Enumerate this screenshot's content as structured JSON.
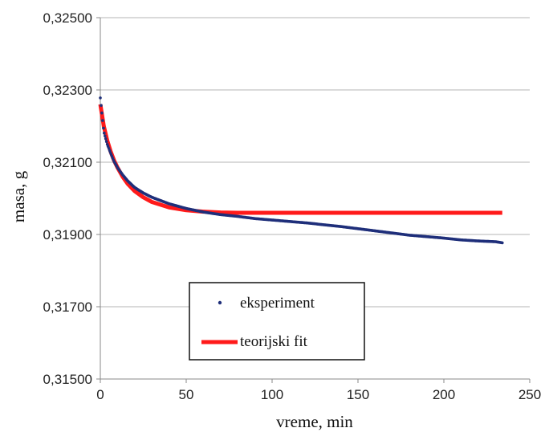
{
  "chart_data": {
    "type": "line",
    "xlabel": "vreme, min",
    "ylabel": "masa, g",
    "xlim": [
      0,
      250
    ],
    "ylim": [
      0.315,
      0.325
    ],
    "xticks": [
      0,
      50,
      100,
      150,
      200,
      250
    ],
    "xtick_labels": [
      "0",
      "50",
      "100",
      "150",
      "200",
      "250"
    ],
    "yticks": [
      0.315,
      0.317,
      0.319,
      0.321,
      0.323,
      0.325
    ],
    "ytick_labels": [
      "0,31500",
      "0,31700",
      "0,31900",
      "0,32100",
      "0,32300",
      "0,32500"
    ],
    "grid": "horizontal",
    "legend_position": "bottom-center",
    "series": [
      {
        "name": "eksperiment",
        "style": "points",
        "color": "#1f2f7a",
        "x": [
          0,
          2,
          4,
          6,
          8,
          10,
          13,
          16,
          20,
          25,
          30,
          40,
          50,
          60,
          70,
          80,
          90,
          100,
          110,
          120,
          130,
          140,
          150,
          160,
          170,
          180,
          190,
          200,
          210,
          220,
          230,
          234
        ],
        "y": [
          0.32278,
          0.32185,
          0.3215,
          0.32125,
          0.32102,
          0.32085,
          0.32065,
          0.32048,
          0.3203,
          0.32015,
          0.32003,
          0.31985,
          0.31972,
          0.31962,
          0.31955,
          0.3195,
          0.31944,
          0.3194,
          0.31936,
          0.31932,
          0.31927,
          0.31922,
          0.31916,
          0.3191,
          0.31904,
          0.31898,
          0.31894,
          0.3189,
          0.31885,
          0.31882,
          0.3188,
          0.31877
        ]
      },
      {
        "name": "teorijski fit",
        "style": "line",
        "color": "#ff1a1a",
        "x": [
          0,
          2,
          4,
          6,
          8,
          10,
          13,
          16,
          20,
          25,
          30,
          40,
          50,
          60,
          70,
          80,
          100,
          150,
          200,
          234
        ],
        "y": [
          0.3226,
          0.322,
          0.3216,
          0.3213,
          0.32105,
          0.32085,
          0.3206,
          0.3204,
          0.3202,
          0.32003,
          0.3199,
          0.31975,
          0.31967,
          0.31963,
          0.31961,
          0.3196,
          0.3196,
          0.3196,
          0.3196,
          0.3196
        ]
      }
    ]
  }
}
